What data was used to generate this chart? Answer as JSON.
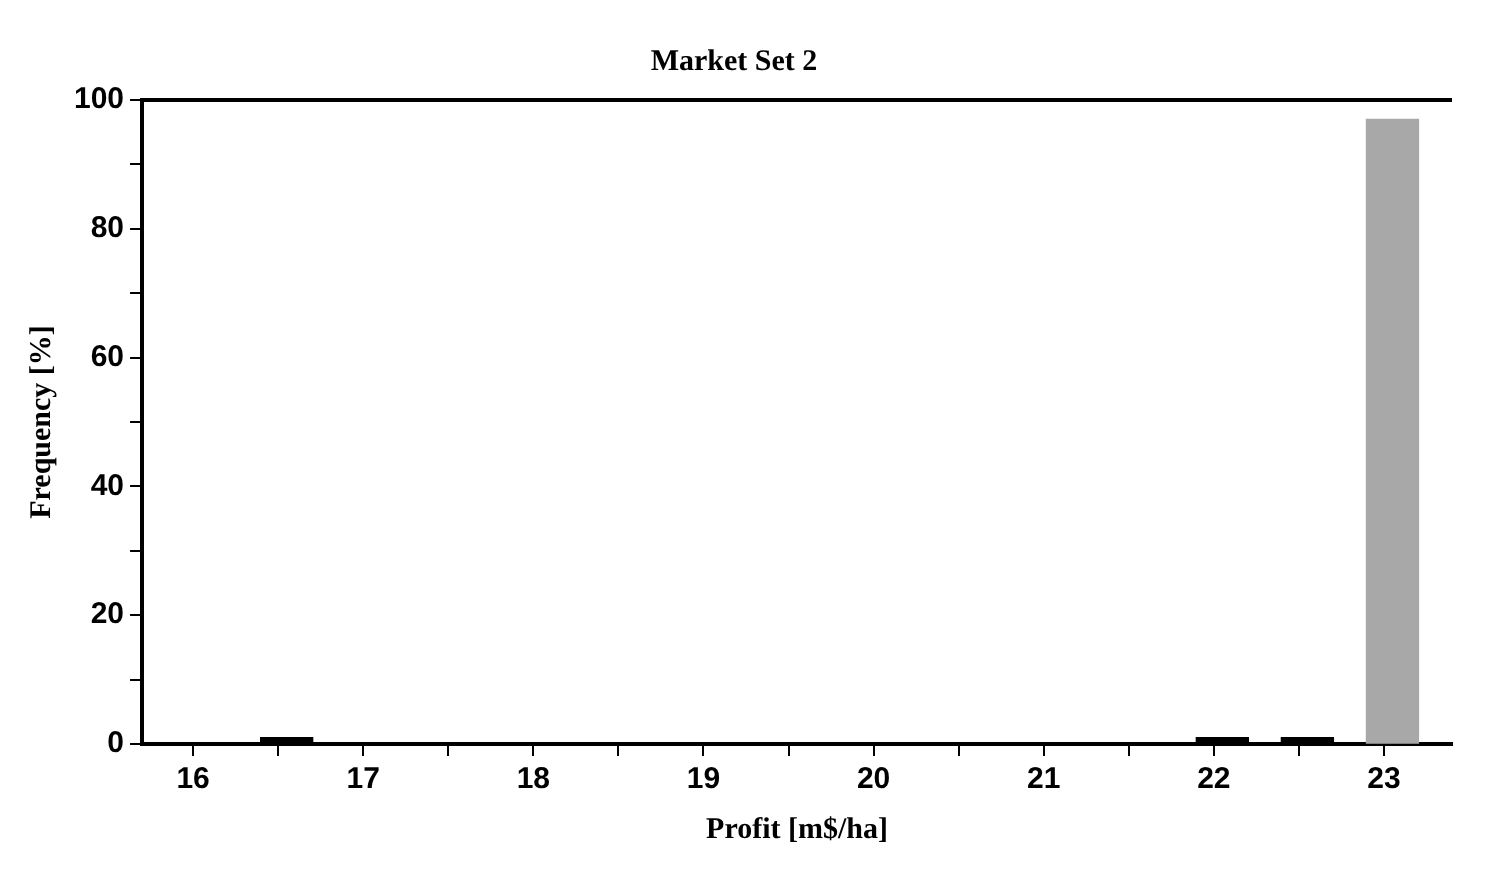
{
  "chart_data": {
    "type": "bar",
    "title": "Market Set 2",
    "xlabel": "Profit [m$/ha]",
    "ylabel": "Frequency [%]",
    "x": [
      16.55,
      22.05,
      22.55,
      23.05
    ],
    "values": [
      1,
      1,
      1,
      97
    ],
    "colors": [
      "#000000",
      "#000000",
      "#000000",
      "#a8a8a8"
    ],
    "xlim": [
      15.7,
      23.4
    ],
    "xticks": [
      16,
      {
        "value": 16.5,
        "label": null
      },
      17,
      {
        "value": 17.5,
        "label": null
      },
      18,
      {
        "value": 18.5,
        "label": null
      },
      19,
      {
        "value": 19.5,
        "label": null
      },
      20,
      {
        "value": 20.5,
        "label": null
      },
      21,
      {
        "value": 21.5,
        "label": null
      },
      22,
      {
        "value": 22.5,
        "label": null
      },
      23
    ],
    "ylim": [
      0,
      100
    ],
    "yticks": [
      0,
      {
        "value": 10,
        "label": null
      },
      20,
      {
        "value": 30,
        "label": null
      },
      40,
      {
        "value": 50,
        "label": null
      },
      60,
      {
        "value": 70,
        "label": null
      },
      80,
      {
        "value": 90,
        "label": null
      },
      100
    ],
    "grid": false,
    "legend": false
  }
}
